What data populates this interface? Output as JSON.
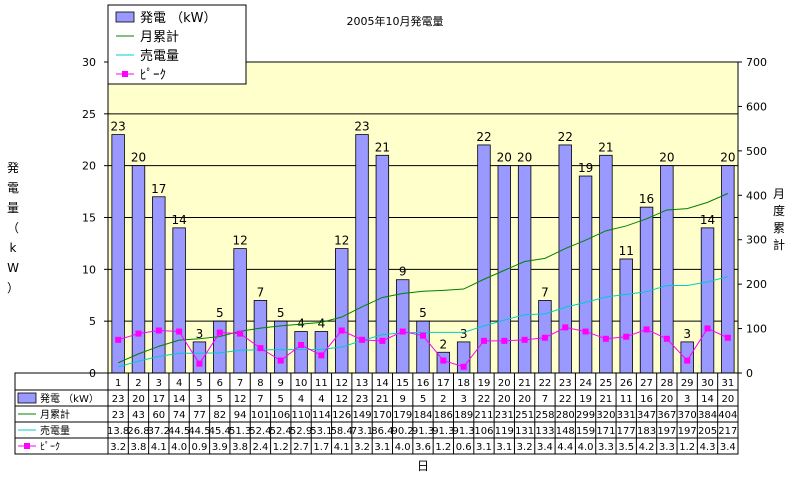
{
  "chart_data": {
    "type": "bar",
    "title": "2005年10月発電量",
    "categories": [
      "1",
      "2",
      "3",
      "4",
      "5",
      "6",
      "7",
      "8",
      "9",
      "10",
      "11",
      "12",
      "13",
      "14",
      "15",
      "16",
      "17",
      "18",
      "19",
      "20",
      "21",
      "22",
      "23",
      "24",
      "25",
      "26",
      "27",
      "28",
      "29",
      "30",
      "31"
    ],
    "series": [
      {
        "name": "発電 （kW）",
        "type": "bar",
        "axis": "left",
        "color": "#9999ff",
        "values": [
          23,
          20,
          17,
          14,
          3,
          5,
          12,
          7,
          5,
          4,
          4,
          12,
          23,
          21,
          9,
          5,
          2,
          3,
          22,
          20,
          20,
          7,
          22,
          19,
          21,
          11,
          16,
          20,
          3,
          14,
          20
        ],
        "table_values": [
          "23",
          "20",
          "17",
          "14",
          "3",
          "5",
          "12",
          "7",
          "5",
          "4",
          "4",
          "12",
          "23",
          "21",
          "9",
          "5",
          "2",
          "3",
          "22",
          "20",
          "20",
          "7",
          "22",
          "19",
          "21",
          "11",
          "16",
          "20",
          "3",
          "14",
          "20"
        ]
      },
      {
        "name": "月累計",
        "type": "line",
        "axis": "right",
        "color": "#008000",
        "values": [
          23,
          43,
          60,
          74,
          77,
          82,
          94,
          101,
          106,
          110,
          114,
          126,
          149,
          170,
          179,
          184,
          186,
          189,
          211,
          231,
          251,
          258,
          280,
          299,
          320,
          331,
          347,
          367,
          370,
          384,
          404
        ],
        "table_values": [
          "23",
          "43",
          "60",
          "74",
          "77",
          "82",
          "94",
          "101",
          "106",
          "110",
          "114",
          "126",
          "149",
          "170",
          "179",
          "184",
          "186",
          "189",
          "211",
          "231",
          "251",
          "258",
          "280",
          "299",
          "320",
          "331",
          "347",
          "367",
          "370",
          "384",
          "404"
        ]
      },
      {
        "name": "売電量",
        "type": "line",
        "axis": "right",
        "color": "#00cccc",
        "values": [
          13.8,
          26.8,
          37.2,
          44.5,
          44.5,
          45.4,
          51.3,
          52.4,
          52.4,
          52.9,
          53.1,
          58.4,
          73.1,
          86.4,
          90.2,
          91.3,
          91.3,
          91.3,
          106,
          119,
          131,
          133,
          148,
          159,
          171,
          177,
          183,
          197,
          197,
          205,
          217
        ],
        "table_values": [
          "13.8",
          "26.8",
          "37.2",
          "44.5",
          "44.5",
          "45.4",
          "51.3",
          "52.4",
          "52.4",
          "52.9",
          "53.1",
          "58.4",
          "73.1",
          "86.4",
          "90.2",
          "91.3",
          "91.3",
          "91.3",
          "106",
          "119",
          "131",
          "133",
          "148",
          "159",
          "171",
          "177",
          "183",
          "197",
          "197",
          "205",
          "217"
        ]
      },
      {
        "name": "ﾋﾟｰｸ",
        "type": "line",
        "axis": "left",
        "color": "#ff00ff",
        "marker": "square",
        "values": [
          3.2,
          3.8,
          4.1,
          4.0,
          0.9,
          3.9,
          3.8,
          2.4,
          1.2,
          2.7,
          1.7,
          4.1,
          3.2,
          3.1,
          4.0,
          3.6,
          1.2,
          0.6,
          3.1,
          3.1,
          3.2,
          3.4,
          4.4,
          4.0,
          3.3,
          3.5,
          4.2,
          3.3,
          1.2,
          4.3,
          3.4
        ],
        "table_values": [
          "3.2",
          "3.8",
          "4.1",
          "4.0",
          "0.9",
          "3.9",
          "3.8",
          "2.4",
          "1.2",
          "2.7",
          "1.7",
          "4.1",
          "3.2",
          "3.1",
          "4.0",
          "3.6",
          "1.2",
          "0.6",
          "3.1",
          "3.1",
          "3.2",
          "3.4",
          "4.4",
          "4.0",
          "3.3",
          "3.5",
          "4.2",
          "3.3",
          "1.2",
          "4.3",
          "3.4"
        ]
      }
    ],
    "y_left": {
      "label": "発電量（kW）",
      "ticks": [
        "0",
        "5",
        "10",
        "15",
        "20",
        "25",
        "30"
      ],
      "range": [
        0,
        30
      ]
    },
    "y_right": {
      "label": "月度累計",
      "ticks": [
        "0",
        "100",
        "200",
        "300",
        "400",
        "500",
        "600",
        "700"
      ],
      "range": [
        0,
        700
      ]
    },
    "xlabel": "日",
    "legend_position": "top-left",
    "plot_background": "#ffffcc",
    "grid": true
  },
  "colors": {
    "bar": "#9999ff",
    "cumulative": "#008000",
    "sold": "#00cccc",
    "peak": "#ff00ff",
    "plot_bg": "#ffffcc"
  }
}
